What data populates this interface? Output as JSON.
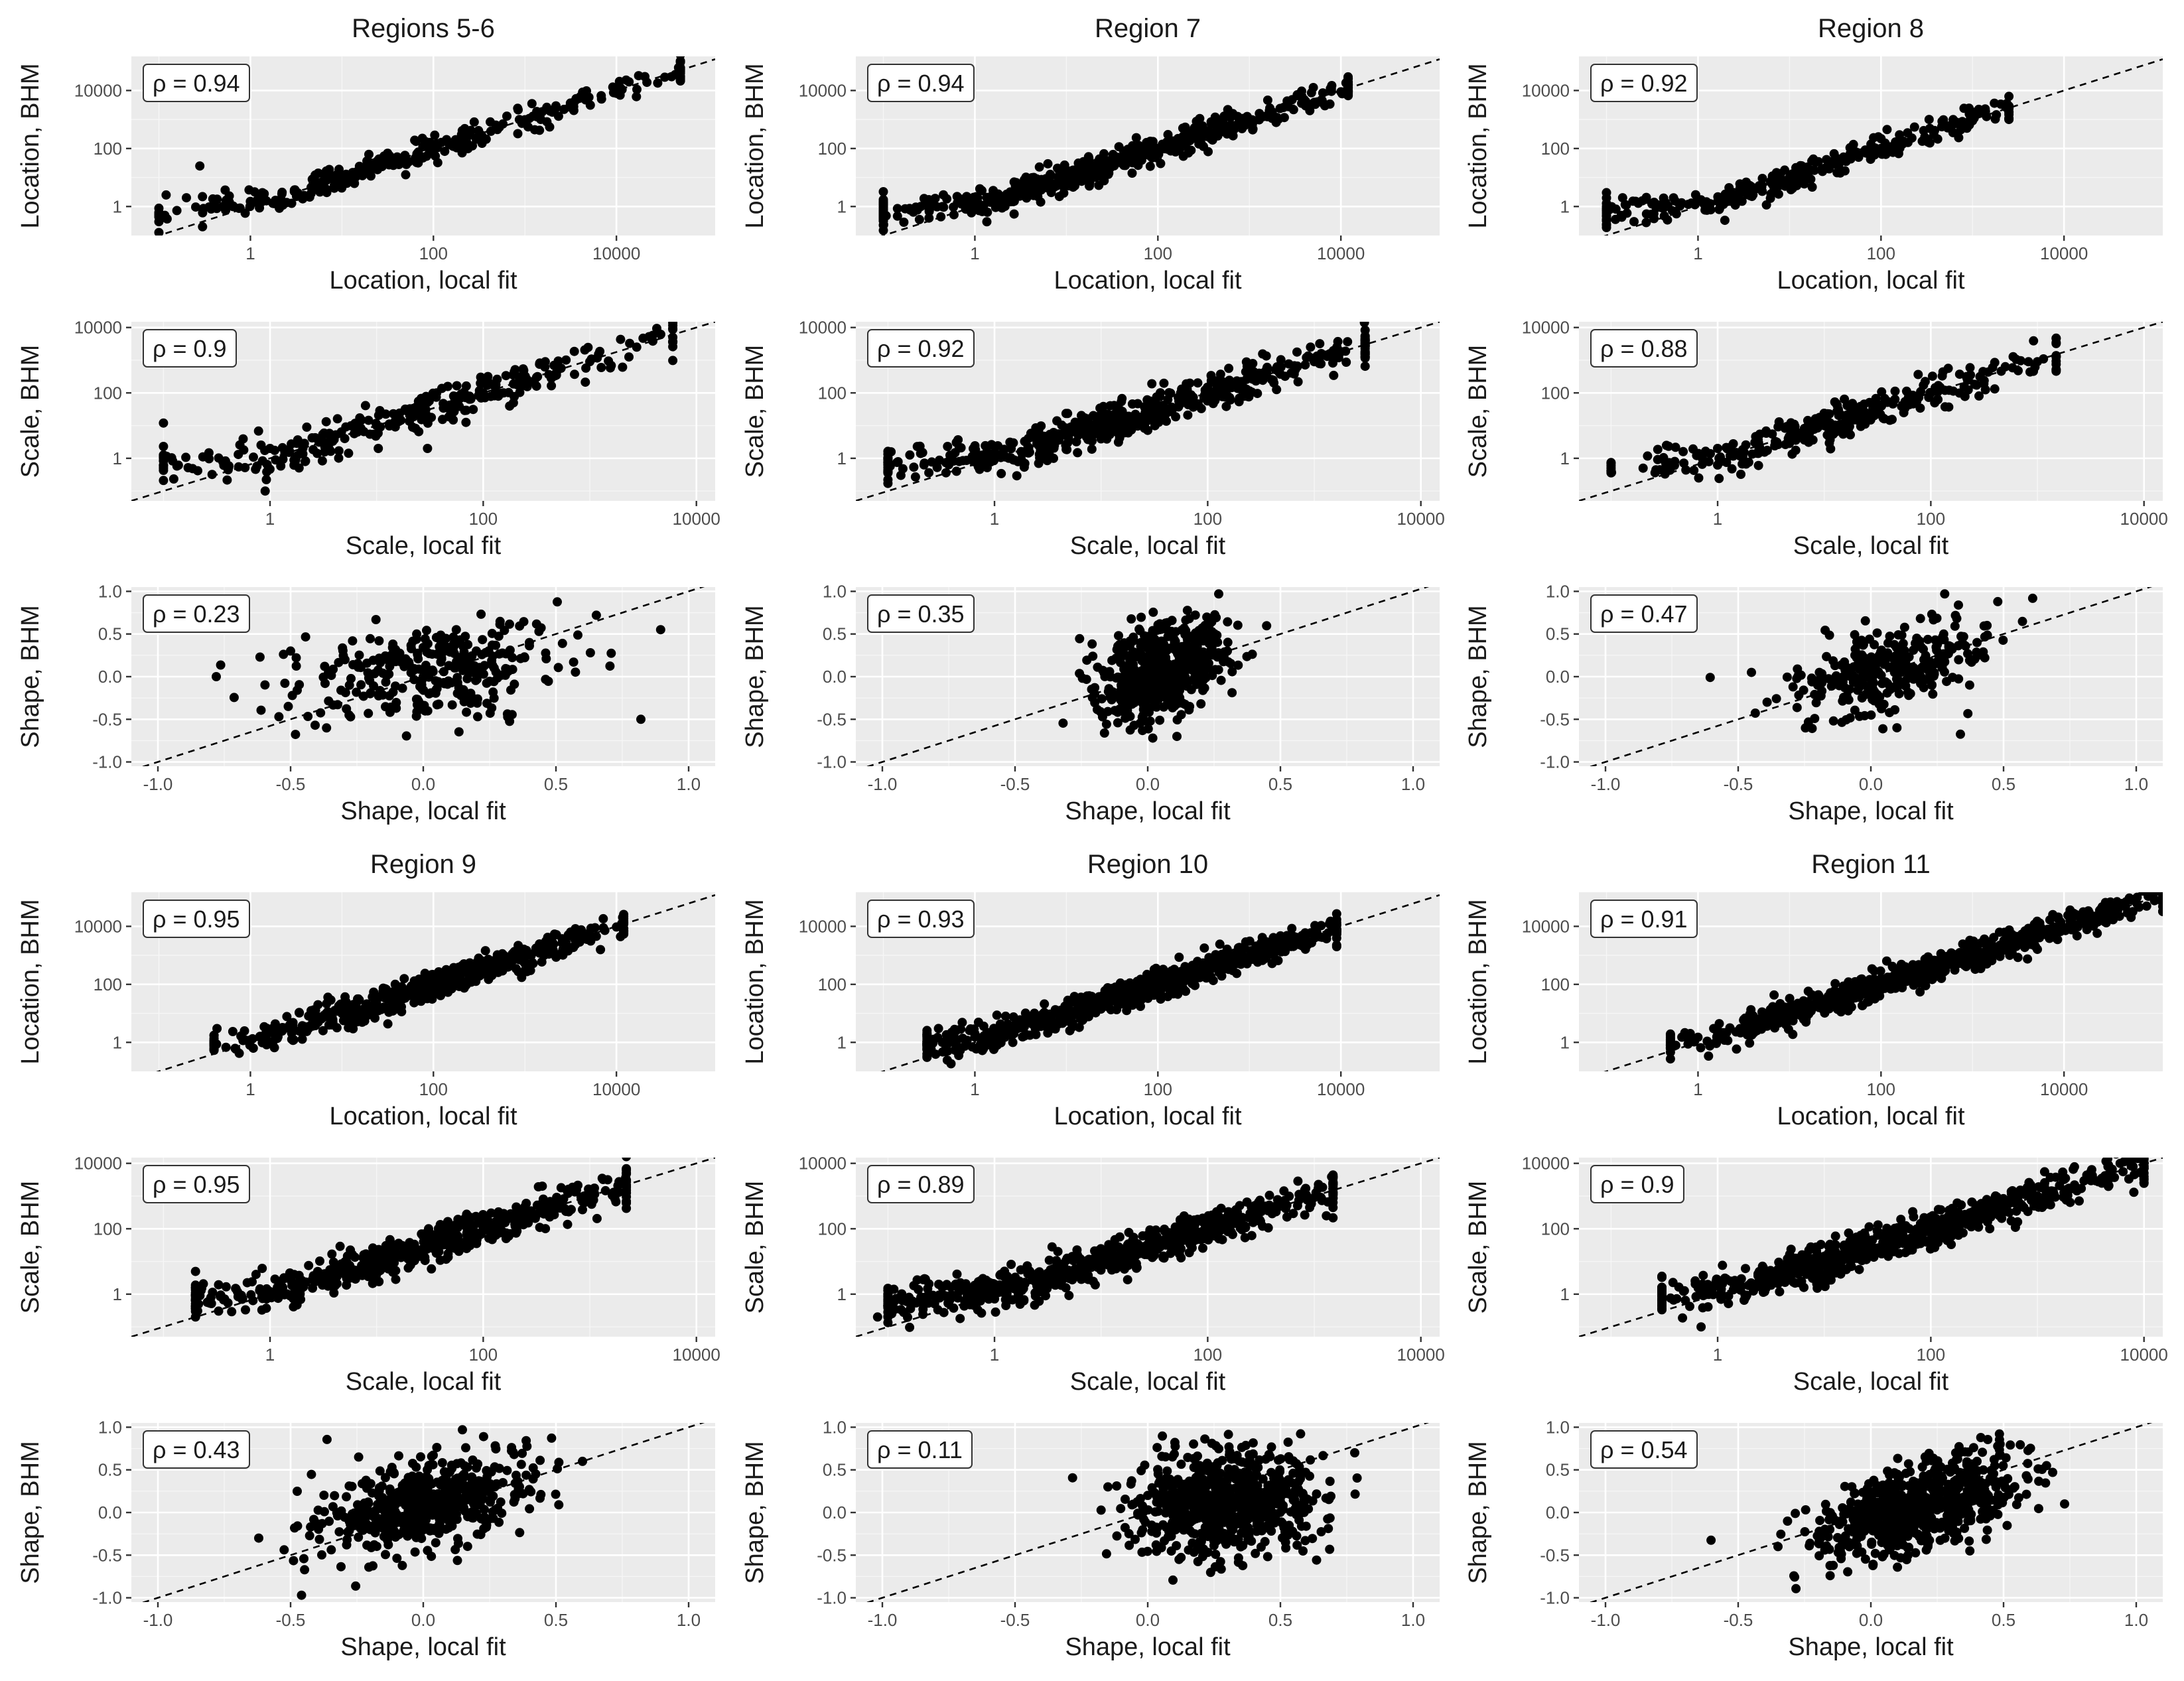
{
  "figure": {
    "regions": [
      {
        "title": "Regions 5-6",
        "rho": {
          "location": "ρ = 0.94",
          "scale": "ρ =  0.9",
          "shape": "ρ =  0.23"
        }
      },
      {
        "title": "Region 7",
        "rho": {
          "location": "ρ = 0.94",
          "scale": "ρ =  0.92",
          "shape": "ρ =  0.35"
        }
      },
      {
        "title": "Region 8",
        "rho": {
          "location": "ρ = 0.92",
          "scale": "ρ =  0.88",
          "shape": "ρ =  0.47"
        }
      },
      {
        "title": "Region 9",
        "rho": {
          "location": "ρ = 0.95",
          "scale": "ρ =  0.95",
          "shape": "ρ =  0.43"
        }
      },
      {
        "title": "Region 10",
        "rho": {
          "location": "ρ = 0.93",
          "scale": "ρ =  0.89",
          "shape": "ρ =  0.11"
        }
      },
      {
        "title": "Region 11",
        "rho": {
          "location": "ρ = 0.91",
          "scale": "ρ =  0.9",
          "shape": "ρ =  0.54"
        }
      }
    ],
    "parameters": [
      {
        "key": "location",
        "xlabel": "Location, local fit",
        "ylabel": "Location, BHM"
      },
      {
        "key": "scale",
        "xlabel": "Scale, local fit",
        "ylabel": "Scale, BHM"
      },
      {
        "key": "shape",
        "xlabel": "Shape, local fit",
        "ylabel": "Shape, BHM"
      }
    ]
  },
  "chart_data": {
    "type": "scatter",
    "reference_line": "y = x (dashed)",
    "grid": true,
    "panels_note": "18 scatter panels: 6 regions x 3 GEV parameters (location, scale, shape); BHM estimate vs local fit estimate",
    "axes": {
      "location": {
        "scale": "log10",
        "xlim": [
          0.05,
          120000
        ],
        "ylim": [
          0.1,
          150000
        ],
        "xticks": [
          "1",
          "100",
          "10000"
        ],
        "yticks": [
          "1",
          "100",
          "10000"
        ]
      },
      "scale": {
        "scale": "log10",
        "xlim": [
          0.05,
          15000
        ],
        "ylim": [
          0.05,
          15000
        ],
        "xticks": [
          "1",
          "100",
          "10000"
        ],
        "yticks": [
          "1",
          "100",
          "10000"
        ]
      },
      "shape": {
        "scale": "linear",
        "xlim": [
          -1.1,
          1.1
        ],
        "ylim": [
          -1.05,
          1.05
        ],
        "xticks": [
          "-1.0",
          "-0.5",
          "0.0",
          "0.5",
          "1.0"
        ],
        "yticks": [
          "-1.0",
          "-0.5",
          "0.0",
          "0.5",
          "1.0"
        ]
      }
    },
    "panels": [
      {
        "region": "Regions 5-6",
        "parameter": "location",
        "rho": 0.94,
        "approx_point_count": 500,
        "x_range": [
          0.1,
          50000
        ],
        "outliers": [
          [
            0.12,
            2.5
          ],
          [
            0.28,
            25
          ],
          [
            0.3,
            0.2
          ]
        ],
        "points_sample": [
          [
            0.2,
            2
          ],
          [
            1,
            1.5
          ],
          [
            5,
            4
          ],
          [
            30,
            30
          ],
          [
            100,
            90
          ],
          [
            500,
            450
          ],
          [
            2000,
            1800
          ],
          [
            10000,
            8000
          ],
          [
            40000,
            30000
          ]
        ]
      },
      {
        "region": "Region 7",
        "parameter": "location",
        "rho": 0.94,
        "approx_point_count": 900,
        "x_range": [
          0.1,
          12000
        ],
        "outliers": [],
        "points_sample": [
          [
            0.1,
            1
          ],
          [
            1,
            2
          ],
          [
            10,
            8
          ],
          [
            100,
            80
          ],
          [
            1000,
            900
          ],
          [
            10000,
            9000
          ]
        ]
      },
      {
        "region": "Region 8",
        "parameter": "location",
        "rho": 0.92,
        "approx_point_count": 500,
        "x_range": [
          0.1,
          2500
        ],
        "outliers": [
          [
            0.1,
            3
          ],
          [
            0.2,
            0.3
          ]
        ],
        "points_sample": [
          [
            0.15,
            2
          ],
          [
            1,
            1.5
          ],
          [
            10,
            10
          ],
          [
            100,
            100
          ],
          [
            1000,
            900
          ],
          [
            2500,
            2600
          ]
        ]
      },
      {
        "region": "Region 9",
        "parameter": "location",
        "rho": 0.95,
        "approx_point_count": 900,
        "x_range": [
          0.4,
          12000
        ],
        "outliers": [],
        "points_sample": [
          [
            0.4,
            0.6
          ],
          [
            1,
            1.2
          ],
          [
            10,
            10
          ],
          [
            100,
            100
          ],
          [
            1000,
            1000
          ],
          [
            10000,
            9500
          ]
        ]
      },
      {
        "region": "Region 10",
        "parameter": "location",
        "rho": 0.93,
        "approx_point_count": 1200,
        "x_range": [
          0.3,
          9000
        ],
        "outliers": [
          [
            0.3,
            0.4
          ]
        ],
        "points_sample": [
          [
            0.4,
            3
          ],
          [
            1,
            2
          ],
          [
            10,
            10
          ],
          [
            100,
            90
          ],
          [
            1000,
            900
          ],
          [
            3000,
            2800
          ],
          [
            9000,
            2000
          ]
        ]
      },
      {
        "region": "Region 11",
        "parameter": "location",
        "rho": 0.91,
        "approx_point_count": 1200,
        "x_range": [
          0.5,
          120000
        ],
        "outliers": [],
        "points_sample": [
          [
            0.5,
            1
          ],
          [
            1,
            1.5
          ],
          [
            10,
            10
          ],
          [
            100,
            100
          ],
          [
            1000,
            1000
          ],
          [
            10000,
            9000
          ],
          [
            80000,
            50000
          ]
        ]
      },
      {
        "region": "Regions 5-6",
        "parameter": "scale",
        "rho": 0.9,
        "approx_point_count": 500,
        "x_range": [
          0.1,
          6000
        ],
        "outliers": [
          [
            0.1,
            12
          ],
          [
            0.9,
            0.1
          ],
          [
            30,
            2
          ]
        ],
        "points_sample": [
          [
            0.1,
            1
          ],
          [
            1,
            2
          ],
          [
            10,
            10
          ],
          [
            100,
            100
          ],
          [
            1000,
            900
          ],
          [
            6000,
            5000
          ]
        ]
      },
      {
        "region": "Region 7",
        "parameter": "scale",
        "rho": 0.92,
        "approx_point_count": 900,
        "x_range": [
          0.1,
          3000
        ],
        "outliers": [
          [
            3000,
            1500
          ]
        ],
        "points_sample": [
          [
            0.1,
            1
          ],
          [
            1,
            1.5
          ],
          [
            10,
            8
          ],
          [
            100,
            80
          ],
          [
            1000,
            900
          ],
          [
            3000,
            1500
          ]
        ]
      },
      {
        "region": "Region 8",
        "parameter": "scale",
        "rho": 0.88,
        "approx_point_count": 500,
        "x_range": [
          0.1,
          1500
        ],
        "outliers": [
          [
            0.2,
            0.5
          ]
        ],
        "points_sample": [
          [
            0.1,
            0.4
          ],
          [
            1,
            2
          ],
          [
            10,
            10
          ],
          [
            100,
            100
          ],
          [
            1000,
            900
          ],
          [
            1500,
            1300
          ]
        ]
      },
      {
        "region": "Region 9",
        "parameter": "scale",
        "rho": 0.95,
        "approx_point_count": 900,
        "x_range": [
          0.2,
          2200
        ],
        "outliers": [],
        "points_sample": [
          [
            0.2,
            0.2
          ],
          [
            1,
            1.2
          ],
          [
            10,
            10
          ],
          [
            100,
            100
          ],
          [
            1000,
            1000
          ],
          [
            2200,
            2000
          ]
        ]
      },
      {
        "region": "Region 10",
        "parameter": "scale",
        "rho": 0.89,
        "approx_point_count": 1200,
        "x_range": [
          0.1,
          1500
        ],
        "outliers": [
          [
            0.08,
            0.2
          ],
          [
            1300,
            250
          ]
        ],
        "points_sample": [
          [
            0.3,
            2
          ],
          [
            1,
            2
          ],
          [
            10,
            8
          ],
          [
            100,
            80
          ],
          [
            1000,
            900
          ]
        ]
      },
      {
        "region": "Region 11",
        "parameter": "scale",
        "rho": 0.9,
        "approx_point_count": 1200,
        "x_range": [
          0.3,
          10000
        ],
        "outliers": [
          [
            0.7,
            0.1
          ]
        ],
        "points_sample": [
          [
            0.3,
            1
          ],
          [
            1,
            2
          ],
          [
            10,
            10
          ],
          [
            100,
            100
          ],
          [
            1000,
            1000
          ],
          [
            10000,
            8000
          ]
        ]
      },
      {
        "region": "Regions 5-6",
        "parameter": "shape",
        "rho": 0.23,
        "approx_point_count": 500,
        "x_range": [
          -0.8,
          0.85
        ],
        "outliers": [
          [
            -0.78,
            0.0
          ],
          [
            0.82,
            -0.5
          ]
        ],
        "points_sample": [
          [
            -0.5,
            0.3
          ],
          [
            -0.2,
            -0.2
          ],
          [
            0.0,
            0.0
          ],
          [
            0.2,
            0.3
          ],
          [
            0.4,
            0.4
          ]
        ]
      },
      {
        "region": "Region 7",
        "parameter": "shape",
        "rho": 0.35,
        "approx_point_count": 900,
        "x_range": [
          -0.3,
          0.4
        ],
        "outliers": [],
        "points_sample": [
          [
            -0.2,
            -0.2
          ],
          [
            -0.1,
            -0.1
          ],
          [
            0.0,
            0.0
          ],
          [
            0.1,
            0.1
          ],
          [
            0.3,
            0.3
          ]
        ]
      },
      {
        "region": "Region 8",
        "parameter": "shape",
        "rho": 0.47,
        "approx_point_count": 500,
        "x_range": [
          -0.5,
          0.6
        ],
        "outliers": [
          [
            -0.45,
            0.05
          ]
        ],
        "points_sample": [
          [
            -0.2,
            -0.1
          ],
          [
            0.0,
            0.0
          ],
          [
            0.2,
            0.2
          ],
          [
            0.4,
            0.4
          ]
        ]
      },
      {
        "region": "Region 9",
        "parameter": "shape",
        "rho": 0.43,
        "approx_point_count": 900,
        "x_range": [
          -0.6,
          0.6
        ],
        "outliers": [
          [
            -0.62,
            -0.3
          ],
          [
            0.6,
            0.6
          ]
        ],
        "points_sample": [
          [
            -0.2,
            -0.2
          ],
          [
            0.0,
            0.0
          ],
          [
            0.1,
            0.1
          ],
          [
            0.2,
            0.2
          ],
          [
            0.3,
            0.35
          ]
        ]
      },
      {
        "region": "Region 10",
        "parameter": "shape",
        "rho": 0.11,
        "approx_point_count": 1200,
        "x_range": [
          -0.2,
          0.8
        ],
        "outliers": [
          [
            -0.15,
            0.3
          ],
          [
            0.78,
            0.7
          ]
        ],
        "points_sample": [
          [
            0.0,
            0.2
          ],
          [
            0.1,
            0.1
          ],
          [
            0.2,
            0.2
          ],
          [
            0.3,
            0.3
          ],
          [
            0.4,
            0.4
          ]
        ]
      },
      {
        "region": "Region 11",
        "parameter": "shape",
        "rho": 0.54,
        "approx_point_count": 1200,
        "x_range": [
          -0.4,
          0.75
        ],
        "outliers": [
          [
            -0.35,
            -0.4
          ],
          [
            0.73,
            0.1
          ]
        ],
        "points_sample": [
          [
            0.0,
            0.0
          ],
          [
            0.1,
            0.2
          ],
          [
            0.2,
            0.3
          ],
          [
            0.3,
            0.5
          ],
          [
            0.4,
            0.6
          ]
        ]
      }
    ]
  }
}
